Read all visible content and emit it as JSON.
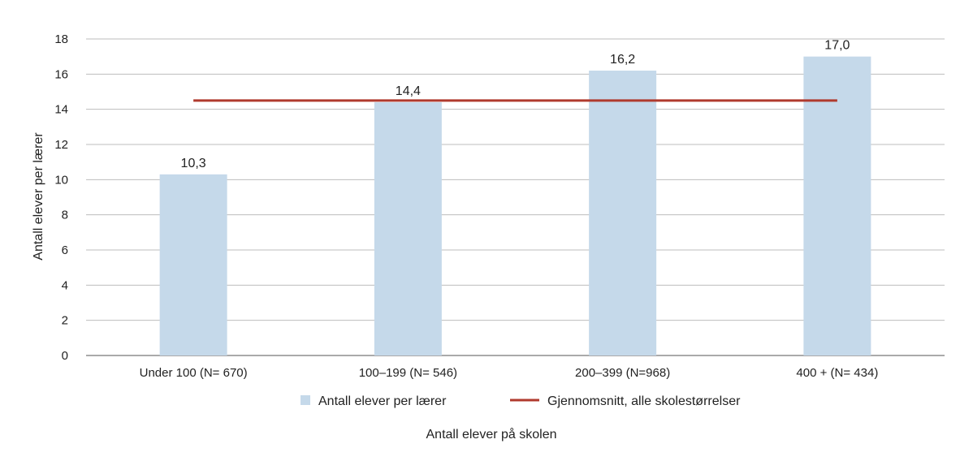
{
  "colors": {
    "bar": "#c5d9ea",
    "line": "#b03a2e",
    "grid": "#bdbdbd",
    "axis": "#555555"
  },
  "legend": {
    "bar_label": "Antall elever per lærer",
    "line_label": "Gjennomsnitt, alle skolestørrelser"
  },
  "chart_data": {
    "type": "bar",
    "categories": [
      "Under 100 (N= 670)",
      "100–199 (N= 546)",
      "200–399 (N=968)",
      "400 + (N= 434)"
    ],
    "series": [
      {
        "name": "Antall elever per lærer",
        "type": "bar",
        "values": [
          10.3,
          14.4,
          16.2,
          17.0
        ],
        "data_labels": [
          "10,3",
          "14,4",
          "16,2",
          "17,0"
        ]
      },
      {
        "name": "Gjennomsnitt, alle skolestørrelser",
        "type": "line",
        "values": [
          14.5,
          14.5,
          14.5,
          14.5
        ]
      }
    ],
    "xlabel": "Antall elever på skolen",
    "ylabel": "Antall elever per lærer",
    "ylim": [
      0,
      18
    ],
    "yticks": [
      0,
      2,
      4,
      6,
      8,
      10,
      12,
      14,
      16,
      18
    ],
    "grid": true,
    "legend_position": "bottom"
  }
}
